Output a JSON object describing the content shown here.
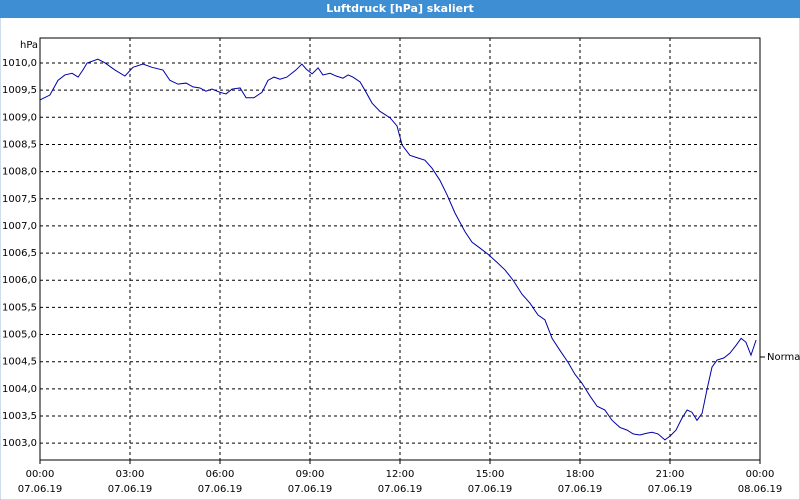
{
  "chart_data": {
    "type": "line",
    "title": "Luftdruck [hPa] skaliert",
    "y_label": "hPa",
    "annotation": "Normal",
    "x": [
      0,
      0.33,
      0.6,
      0.83,
      1.07,
      1.27,
      1.43,
      1.57,
      1.93,
      2.17,
      2.5,
      2.83,
      3.1,
      3.43,
      3.73,
      4.1,
      4.33,
      4.6,
      4.87,
      5.1,
      5.33,
      5.53,
      5.73,
      6,
      6.2,
      6.4,
      6.67,
      6.87,
      7.13,
      7.4,
      7.6,
      7.8,
      8,
      8.23,
      8.53,
      8.73,
      8.87,
      9.07,
      9.27,
      9.43,
      9.67,
      9.87,
      10.1,
      10.27,
      10.43,
      10.67,
      10.87,
      11.07,
      11.33,
      11.67,
      11.9,
      12.07,
      12.33,
      12.6,
      12.83,
      13.07,
      13.33,
      13.57,
      13.83,
      14.17,
      14.4,
      14.67,
      14.93,
      15.23,
      15.5,
      15.77,
      16.07,
      16.33,
      16.6,
      16.83,
      17.07,
      17.33,
      17.6,
      17.83,
      18.07,
      18.33,
      18.57,
      18.83,
      19.07,
      19.33,
      19.57,
      19.77,
      20,
      20.2,
      20.4,
      20.6,
      20.83,
      21,
      21.2,
      21.4,
      21.57,
      21.73,
      21.9,
      22.07,
      22.23,
      22.4,
      22.57,
      22.8,
      23,
      23.2,
      23.37,
      23.53,
      23.7,
      23.87
    ],
    "series": [
      {
        "name": "Luftdruck",
        "color": "#0000a8",
        "values": [
          1009.32,
          1009.41,
          1009.68,
          1009.78,
          1009.81,
          1009.74,
          1009.87,
          1010.0,
          1010.07,
          1010.0,
          1009.87,
          1009.76,
          1009.92,
          1009.98,
          1009.92,
          1009.87,
          1009.68,
          1009.61,
          1009.63,
          1009.56,
          1009.54,
          1009.48,
          1009.52,
          1009.46,
          1009.43,
          1009.52,
          1009.54,
          1009.36,
          1009.36,
          1009.46,
          1009.68,
          1009.74,
          1009.7,
          1009.74,
          1009.87,
          1009.98,
          1009.89,
          1009.8,
          1009.91,
          1009.78,
          1009.81,
          1009.76,
          1009.72,
          1009.78,
          1009.74,
          1009.65,
          1009.46,
          1009.26,
          1009.11,
          1008.99,
          1008.84,
          1008.49,
          1008.3,
          1008.25,
          1008.21,
          1008.06,
          1007.84,
          1007.57,
          1007.24,
          1006.89,
          1006.7,
          1006.59,
          1006.48,
          1006.33,
          1006.19,
          1006.0,
          1005.74,
          1005.58,
          1005.36,
          1005.27,
          1004.93,
          1004.71,
          1004.49,
          1004.27,
          1004.1,
          1003.87,
          1003.68,
          1003.61,
          1003.42,
          1003.29,
          1003.24,
          1003.17,
          1003.15,
          1003.18,
          1003.2,
          1003.17,
          1003.06,
          1003.13,
          1003.24,
          1003.46,
          1003.61,
          1003.57,
          1003.42,
          1003.55,
          1003.98,
          1004.4,
          1004.53,
          1004.57,
          1004.66,
          1004.8,
          1004.93,
          1004.86,
          1004.62,
          1004.9
        ]
      }
    ],
    "xlim": [
      0,
      24
    ],
    "ylim": [
      1002.69,
      1010.46
    ],
    "xticks": [
      {
        "value": 0,
        "label": "00:00"
      },
      {
        "value": 3,
        "label": "03:00"
      },
      {
        "value": 6,
        "label": "06:00"
      },
      {
        "value": 9,
        "label": "09:00"
      },
      {
        "value": 12,
        "label": "12:00"
      },
      {
        "value": 15,
        "label": "15:00"
      },
      {
        "value": 18,
        "label": "18:00"
      },
      {
        "value": 21,
        "label": "21:00"
      },
      {
        "value": 24,
        "label": "00:00"
      }
    ],
    "xtick_dates": [
      "07.06.19",
      "07.06.19",
      "07.06.19",
      "07.06.19",
      "07.06.19",
      "07.06.19",
      "07.06.19",
      "07.06.19",
      "08.06.19"
    ],
    "yticks": [
      {
        "value": 1003,
        "label": "1003,0"
      },
      {
        "value": 1003.5,
        "label": "1003,5"
      },
      {
        "value": 1004,
        "label": "1004,0"
      },
      {
        "value": 1004.5,
        "label": "1004,5"
      },
      {
        "value": 1005,
        "label": "1005,0"
      },
      {
        "value": 1005.5,
        "label": "1005,5"
      },
      {
        "value": 1006,
        "label": "1006,0"
      },
      {
        "value": 1006.5,
        "label": "1006,5"
      },
      {
        "value": 1007,
        "label": "1007,0"
      },
      {
        "value": 1007.5,
        "label": "1007,5"
      },
      {
        "value": 1008,
        "label": "1008,0"
      },
      {
        "value": 1008.5,
        "label": "1008,5"
      },
      {
        "value": 1009,
        "label": "1009,0"
      },
      {
        "value": 1009.5,
        "label": "1009,5"
      },
      {
        "value": 1010,
        "label": "1010,0"
      }
    ],
    "grid": true
  }
}
